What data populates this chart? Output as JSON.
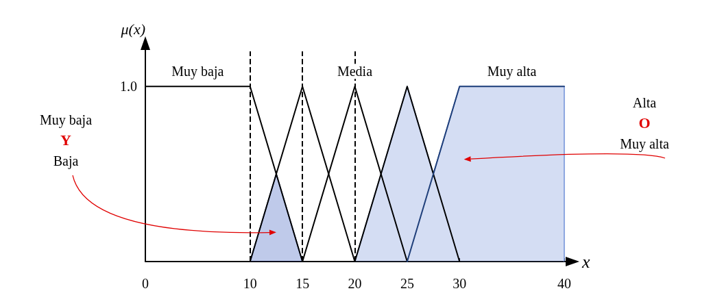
{
  "chart_data": {
    "type": "line",
    "xlabel": "x",
    "ylabel": "μ(x)",
    "xlim": [
      0,
      40
    ],
    "ylim": [
      0,
      1.2
    ],
    "xticks": [
      0,
      10,
      15,
      20,
      25,
      30,
      40
    ],
    "yticks": [
      {
        "value": 0,
        "label": null
      },
      {
        "value": 1,
        "label": "1.0"
      }
    ],
    "series": [
      {
        "name": "Muy baja",
        "color": "#000000",
        "x": [
          0,
          10,
          15
        ],
        "values": [
          1,
          1,
          0
        ]
      },
      {
        "color": "#000000",
        "x": [
          10,
          15,
          20
        ],
        "values": [
          0,
          1,
          0
        ]
      },
      {
        "name": "Media",
        "color": "#000000",
        "x": [
          15,
          20,
          25
        ],
        "values": [
          0,
          1,
          0
        ]
      },
      {
        "color": "#000000",
        "x": [
          20,
          25,
          30
        ],
        "values": [
          0,
          1,
          0
        ]
      },
      {
        "name": "Muy alta",
        "color": "#1f3f7a",
        "x": [
          25,
          30,
          40
        ],
        "values": [
          0,
          1,
          1
        ]
      },
      {
        "type": "area",
        "color": "#2a4fb8",
        "x": [
          10,
          12.5,
          15
        ],
        "values": [
          0,
          0.5,
          0
        ]
      },
      {
        "type": "area",
        "color": "#6f8fd8",
        "x": [
          20,
          25,
          27.5,
          30,
          40,
          40
        ],
        "values": [
          0,
          1,
          0.5,
          1,
          1,
          0
        ]
      }
    ],
    "ref_lines": [
      {
        "axis": "x",
        "value": 10,
        "line_style": "dashed"
      },
      {
        "axis": "x",
        "value": 15,
        "line_style": "dashed"
      },
      {
        "axis": "x",
        "value": 20,
        "line_style": "dashed"
      }
    ],
    "annotations": [
      "Muy baja\nY\nBaja",
      "Alta\nO\nMuy alta"
    ],
    "marker": "none",
    "line_style": "solid",
    "grid": false,
    "legend": false
  }
}
